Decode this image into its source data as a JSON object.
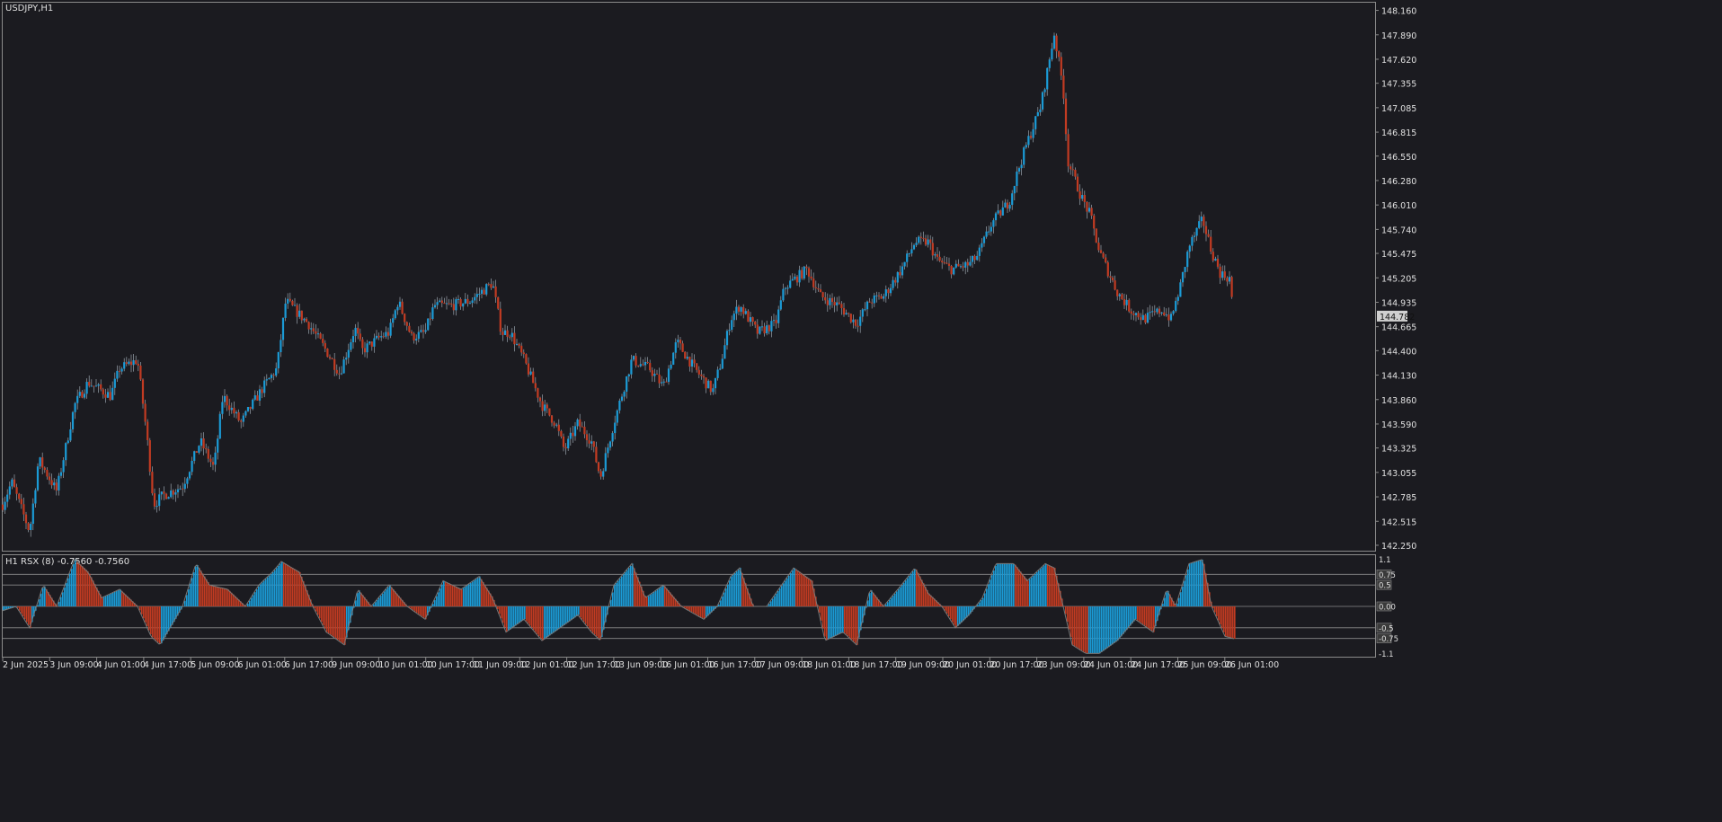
{
  "main": {
    "symbol_label": "USDJPY,H1",
    "price_ticks": [
      "148.160",
      "147.890",
      "147.620",
      "147.355",
      "147.085",
      "146.815",
      "146.550",
      "146.280",
      "146.010",
      "145.740",
      "145.475",
      "145.205",
      "144.935",
      "144.665",
      "144.400",
      "144.130",
      "143.860",
      "143.590",
      "143.325",
      "143.055",
      "142.785",
      "142.515",
      "142.250"
    ],
    "current_price": "144.782",
    "time_ticks": [
      "2 Jun 2025",
      "3 Jun 09:00",
      "4 Jun 01:00",
      "4 Jun 17:00",
      "5 Jun 09:00",
      "6 Jun 01:00",
      "6 Jun 17:00",
      "9 Jun 09:00",
      "10 Jun 01:00",
      "10 Jun 17:00",
      "11 Jun 09:00",
      "12 Jun 01:00",
      "12 Jun 17:00",
      "13 Jun 09:00",
      "16 Jun 01:00",
      "16 Jun 17:00",
      "17 Jun 09:00",
      "18 Jun 01:00",
      "18 Jun 17:00",
      "19 Jun 09:00",
      "20 Jun 01:00",
      "20 Jun 17:00",
      "23 Jun 09:00",
      "24 Jun 01:00",
      "24 Jun 17:00",
      "25 Jun 09:00",
      "26 Jun 01:00"
    ]
  },
  "indicator": {
    "label": "H1  RSX (8) -0.7560 -0.7560",
    "level_labels": [
      "1.1",
      "0.75",
      "0.5",
      "0.00",
      "-0.5",
      "-0.75",
      "-1.1"
    ]
  },
  "colors": {
    "bull": "#1b9bd6",
    "bear": "#c23b22",
    "background": "#1b1b20",
    "grid": "#8a8a8a"
  },
  "chart_data": {
    "type": "candlestick",
    "symbol": "USDJPY",
    "timeframe": "H1",
    "ylim": [
      142.25,
      148.2
    ],
    "path": [
      [
        0,
        142.7
      ],
      [
        10,
        142.95
      ],
      [
        30,
        142.4
      ],
      [
        40,
        143.2
      ],
      [
        60,
        142.85
      ],
      [
        80,
        143.8
      ],
      [
        95,
        144.05
      ],
      [
        120,
        143.9
      ],
      [
        130,
        144.2
      ],
      [
        150,
        144.3
      ],
      [
        160,
        143.5
      ],
      [
        168,
        142.7
      ],
      [
        178,
        142.8
      ],
      [
        200,
        142.9
      ],
      [
        220,
        143.4
      ],
      [
        235,
        143.1
      ],
      [
        245,
        143.9
      ],
      [
        265,
        143.6
      ],
      [
        290,
        144.0
      ],
      [
        305,
        144.2
      ],
      [
        315,
        144.95
      ],
      [
        340,
        144.7
      ],
      [
        360,
        144.4
      ],
      [
        375,
        144.15
      ],
      [
        392,
        144.65
      ],
      [
        400,
        144.4
      ],
      [
        420,
        144.55
      ],
      [
        430,
        144.6
      ],
      [
        440,
        144.95
      ],
      [
        455,
        144.55
      ],
      [
        470,
        144.6
      ],
      [
        480,
        144.9
      ],
      [
        500,
        144.9
      ],
      [
        520,
        144.95
      ],
      [
        545,
        145.15
      ],
      [
        555,
        144.6
      ],
      [
        565,
        144.6
      ],
      [
        580,
        144.3
      ],
      [
        600,
        143.8
      ],
      [
        615,
        143.6
      ],
      [
        625,
        143.3
      ],
      [
        640,
        143.6
      ],
      [
        655,
        143.4
      ],
      [
        665,
        143.0
      ],
      [
        680,
        143.6
      ],
      [
        700,
        144.3
      ],
      [
        720,
        144.2
      ],
      [
        735,
        144.0
      ],
      [
        750,
        144.5
      ],
      [
        770,
        144.2
      ],
      [
        790,
        143.95
      ],
      [
        800,
        144.3
      ],
      [
        810,
        144.75
      ],
      [
        820,
        144.9
      ],
      [
        840,
        144.6
      ],
      [
        860,
        144.7
      ],
      [
        870,
        145.1
      ],
      [
        895,
        145.3
      ],
      [
        910,
        145.0
      ],
      [
        930,
        144.9
      ],
      [
        950,
        144.7
      ],
      [
        965,
        144.95
      ],
      [
        980,
        145.0
      ],
      [
        1000,
        145.3
      ],
      [
        1015,
        145.6
      ],
      [
        1030,
        145.6
      ],
      [
        1040,
        145.4
      ],
      [
        1055,
        145.3
      ],
      [
        1075,
        145.35
      ],
      [
        1085,
        145.45
      ],
      [
        1100,
        145.8
      ],
      [
        1120,
        146.05
      ],
      [
        1130,
        146.4
      ],
      [
        1140,
        146.7
      ],
      [
        1155,
        147.1
      ],
      [
        1170,
        147.9
      ],
      [
        1180,
        147.3
      ],
      [
        1185,
        146.5
      ],
      [
        1200,
        146.1
      ],
      [
        1210,
        145.9
      ],
      [
        1220,
        145.5
      ],
      [
        1240,
        145.05
      ],
      [
        1255,
        144.85
      ],
      [
        1270,
        144.75
      ],
      [
        1290,
        144.85
      ],
      [
        1300,
        144.75
      ],
      [
        1310,
        145.1
      ],
      [
        1320,
        145.55
      ],
      [
        1335,
        145.85
      ],
      [
        1345,
        145.5
      ],
      [
        1355,
        145.25
      ],
      [
        1365,
        145.2
      ],
      [
        1370,
        144.78
      ]
    ],
    "rsx": {
      "name": "RSX (8)",
      "last_value": -0.756,
      "levels": [
        1.1,
        0.75,
        0.5,
        0.0,
        -0.5,
        -0.75,
        -1.1
      ],
      "path": [
        [
          0,
          -0.1
        ],
        [
          15,
          0.0
        ],
        [
          30,
          -0.5
        ],
        [
          45,
          0.5
        ],
        [
          60,
          0.0
        ],
        [
          80,
          1.1
        ],
        [
          95,
          0.8
        ],
        [
          110,
          0.2
        ],
        [
          130,
          0.4
        ],
        [
          150,
          0.0
        ],
        [
          165,
          -0.7
        ],
        [
          175,
          -0.9
        ],
        [
          200,
          0.0
        ],
        [
          215,
          1.0
        ],
        [
          230,
          0.5
        ],
        [
          250,
          0.4
        ],
        [
          270,
          0.0
        ],
        [
          285,
          0.5
        ],
        [
          300,
          0.8
        ],
        [
          310,
          1.05
        ],
        [
          330,
          0.8
        ],
        [
          345,
          0.0
        ],
        [
          360,
          -0.6
        ],
        [
          380,
          -0.9
        ],
        [
          395,
          0.4
        ],
        [
          410,
          0.0
        ],
        [
          430,
          0.5
        ],
        [
          450,
          0.0
        ],
        [
          470,
          -0.3
        ],
        [
          490,
          0.6
        ],
        [
          510,
          0.4
        ],
        [
          530,
          0.7
        ],
        [
          545,
          0.2
        ],
        [
          560,
          -0.6
        ],
        [
          580,
          -0.3
        ],
        [
          600,
          -0.8
        ],
        [
          620,
          -0.5
        ],
        [
          640,
          -0.2
        ],
        [
          655,
          -0.6
        ],
        [
          665,
          -0.8
        ],
        [
          680,
          0.5
        ],
        [
          700,
          1.0
        ],
        [
          715,
          0.2
        ],
        [
          735,
          0.5
        ],
        [
          755,
          0.0
        ],
        [
          780,
          -0.3
        ],
        [
          795,
          0.0
        ],
        [
          810,
          0.7
        ],
        [
          820,
          0.9
        ],
        [
          835,
          0.0
        ],
        [
          850,
          0.0
        ],
        [
          860,
          0.3
        ],
        [
          880,
          0.9
        ],
        [
          900,
          0.6
        ],
        [
          915,
          -0.8
        ],
        [
          935,
          -0.6
        ],
        [
          950,
          -0.9
        ],
        [
          965,
          0.4
        ],
        [
          980,
          0.0
        ],
        [
          1000,
          0.5
        ],
        [
          1015,
          0.9
        ],
        [
          1030,
          0.3
        ],
        [
          1045,
          0.0
        ],
        [
          1060,
          -0.5
        ],
        [
          1075,
          -0.2
        ],
        [
          1090,
          0.2
        ],
        [
          1105,
          1.0
        ],
        [
          1125,
          1.0
        ],
        [
          1140,
          0.6
        ],
        [
          1160,
          1.0
        ],
        [
          1170,
          0.9
        ],
        [
          1180,
          0.0
        ],
        [
          1190,
          -0.9
        ],
        [
          1205,
          -1.1
        ],
        [
          1220,
          -1.1
        ],
        [
          1240,
          -0.8
        ],
        [
          1260,
          -0.3
        ],
        [
          1280,
          -0.6
        ],
        [
          1295,
          0.4
        ],
        [
          1305,
          0.0
        ],
        [
          1320,
          1.0
        ],
        [
          1335,
          1.1
        ],
        [
          1345,
          0.0
        ],
        [
          1360,
          -0.7
        ],
        [
          1370,
          -0.756
        ]
      ]
    }
  }
}
